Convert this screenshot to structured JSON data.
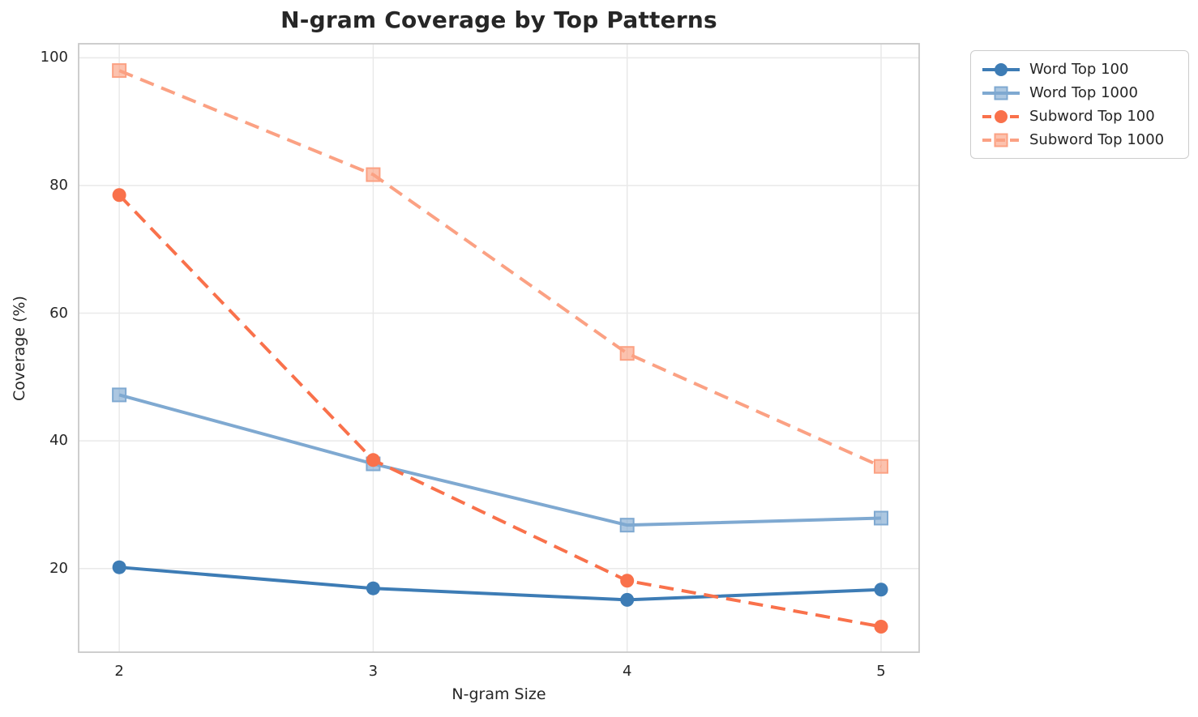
{
  "chart_data": {
    "type": "line",
    "title": "N-gram Coverage by Top Patterns",
    "xlabel": "N-gram Size",
    "ylabel": "Coverage (%)",
    "x": [
      2,
      3,
      4,
      5
    ],
    "series": [
      {
        "name": "Word Top 100",
        "color": "#3D7CB5",
        "line_style": "solid",
        "marker": "circle",
        "values": [
          20.2,
          16.9,
          15.1,
          16.7
        ]
      },
      {
        "name": "Word Top 1000",
        "color": "#7FA9D1",
        "line_style": "solid",
        "marker": "square",
        "values": [
          47.2,
          36.4,
          26.8,
          27.9
        ]
      },
      {
        "name": "Subword Top 100",
        "color": "#F9714B",
        "line_style": "dashed",
        "marker": "circle",
        "values": [
          78.5,
          37.0,
          18.1,
          10.9
        ]
      },
      {
        "name": "Subword Top 1000",
        "color": "#FBA183",
        "line_style": "dashed",
        "marker": "square",
        "values": [
          98.0,
          81.7,
          53.7,
          36.0
        ]
      }
    ],
    "xticks": [
      2,
      3,
      4,
      5
    ],
    "yticks": [
      20,
      40,
      60,
      80,
      100
    ],
    "xlim": [
      1.84,
      5.15
    ],
    "ylim": [
      6.9,
      102.2
    ],
    "grid": true,
    "legend_position": "outside-top-right",
    "colors": {
      "background": "#ffffff",
      "grid": "#e9e9e9",
      "spine": "#c9c9c9",
      "text": "#262626"
    }
  }
}
